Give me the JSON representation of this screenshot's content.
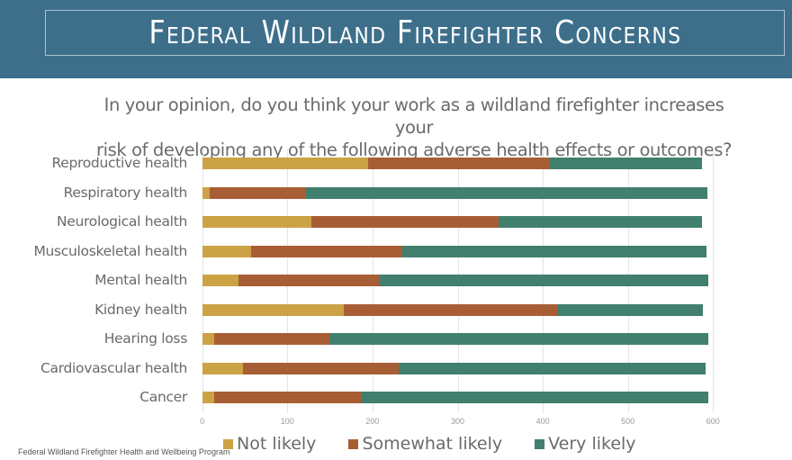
{
  "header": {
    "title": "Federal Wildland Firefighter Concerns",
    "background": "#3d6f8b"
  },
  "question": {
    "line1": "In your opinion, do you think your work as a wildland firefighter increases your",
    "line2": "risk of developing any of the following adverse health effects or outcomes?"
  },
  "footnote": "Federal Wildland Firefighter Health and Wellbeing Program",
  "legend": [
    {
      "label": "Not likely",
      "color": "#cba244"
    },
    {
      "label": "Somewhat likely",
      "color": "#a85e35"
    },
    {
      "label": "Very likely",
      "color": "#417f6e"
    }
  ],
  "axis": {
    "ticks": [
      "0",
      "100",
      "200",
      "300",
      "400",
      "500",
      "600"
    ]
  },
  "chart_data": {
    "type": "bar",
    "orientation": "horizontal",
    "stacked": true,
    "title": "In your opinion, do you think your work as a wildland firefighter increases your risk of developing any of the following adverse health effects or outcomes?",
    "categories": [
      "Reproductive health",
      "Respiratory health",
      "Neurological health",
      "Musculoskeletal health",
      "Mental health",
      "Kidney health",
      "Hearing loss",
      "Cardiovascular health",
      "Cancer"
    ],
    "series": [
      {
        "name": "Not likely",
        "color": "#cba244",
        "values": [
          195,
          9,
          128,
          57,
          43,
          166,
          14,
          48,
          14
        ]
      },
      {
        "name": "Somewhat likely",
        "color": "#a85e35",
        "values": [
          212,
          113,
          220,
          178,
          165,
          252,
          135,
          183,
          172
        ]
      },
      {
        "name": "Very likely",
        "color": "#417f6e",
        "values": [
          180,
          471,
          239,
          357,
          386,
          170,
          445,
          360,
          408
        ]
      }
    ],
    "xlabel": "",
    "ylabel": "",
    "xlim": [
      0,
      600
    ],
    "xticks": [
      0,
      100,
      200,
      300,
      400,
      500,
      600
    ],
    "grid": "vertical",
    "legend_position": "bottom"
  }
}
